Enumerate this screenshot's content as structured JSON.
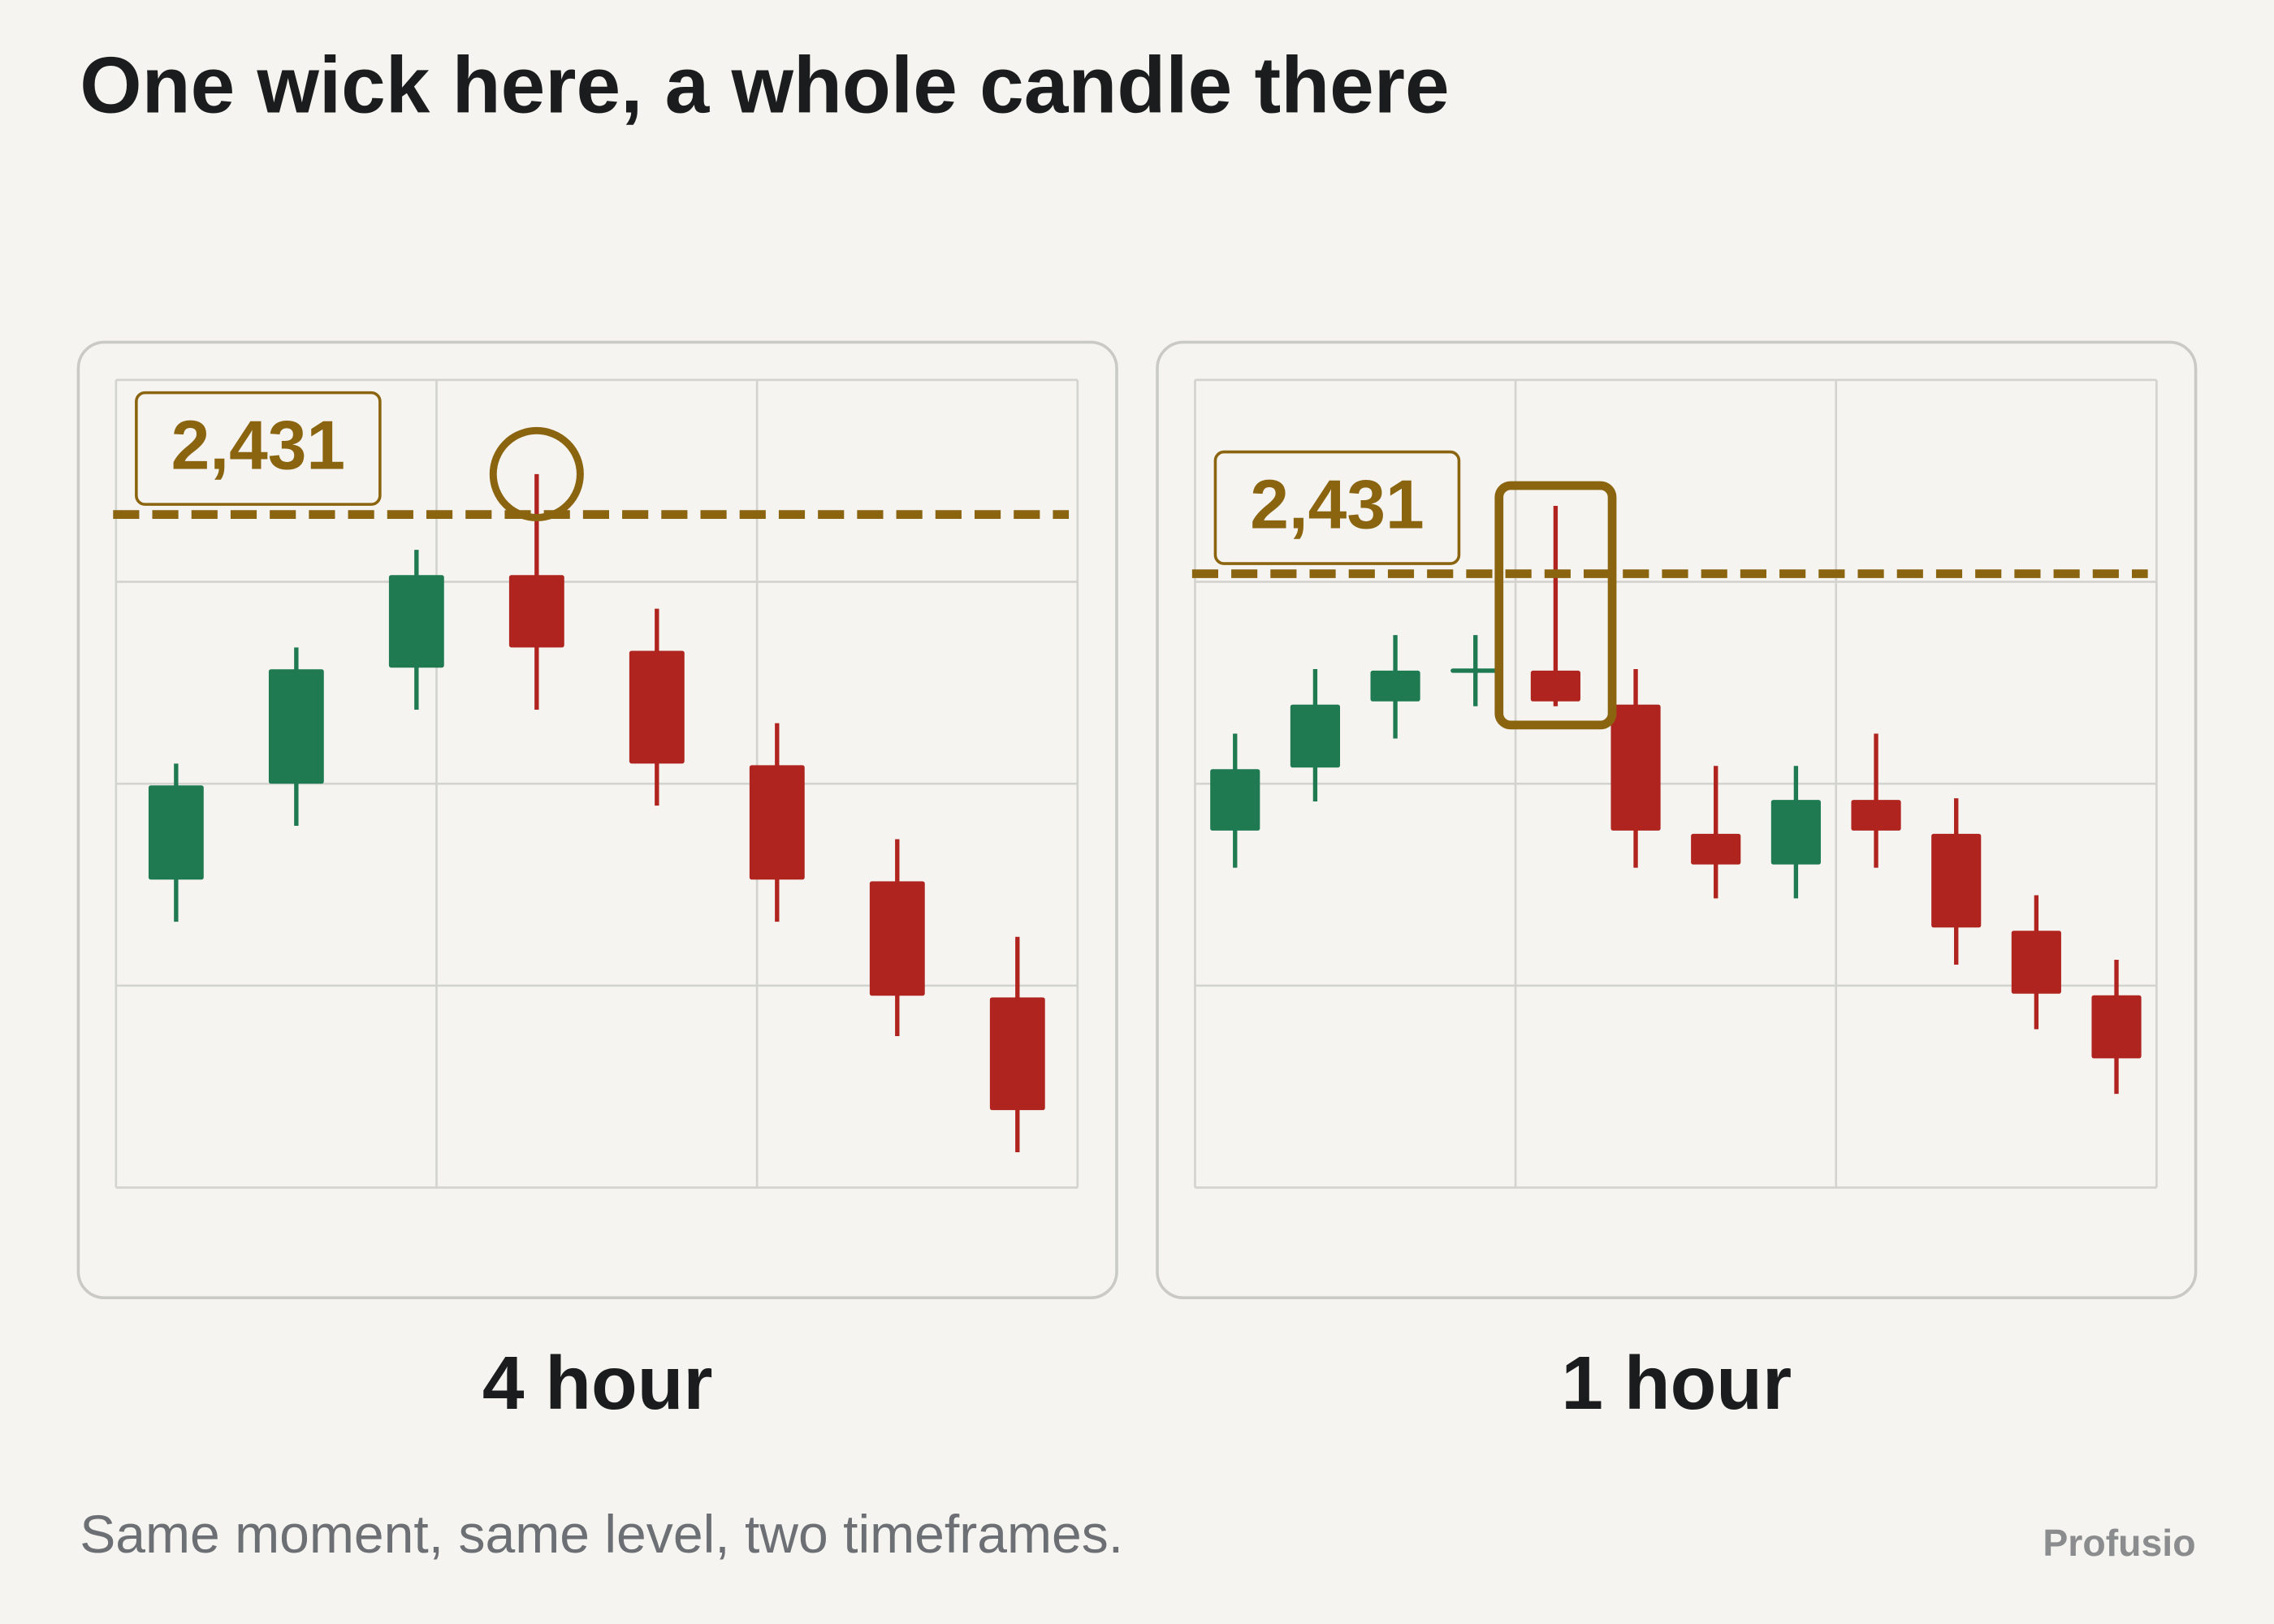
{
  "title": "One wick here, a whole candle there",
  "caption": "Same moment, same level, two timeframes.",
  "brand": "Profusio",
  "chart_data": [
    {
      "type": "candlestick",
      "title": "4 hour",
      "open": [
        2409.3,
        2415.0,
        2421.9,
        2427.4,
        2422.9,
        2416.1,
        2409.2,
        2402.3
      ],
      "high": [
        2416.2,
        2423.1,
        2428.9,
        2433.4,
        2425.4,
        2418.6,
        2411.7,
        2405.9
      ],
      "low": [
        2406.8,
        2412.5,
        2419.4,
        2419.4,
        2413.7,
        2406.8,
        2400.0,
        2393.1
      ],
      "close": [
        2414.9,
        2421.8,
        2427.4,
        2423.1,
        2416.2,
        2409.3,
        2402.4,
        2395.6
      ],
      "up_color": "#1f7a52",
      "down_color": "#b0241f",
      "ylim": [
        2391,
        2439
      ],
      "yticks": [
        2391,
        2403,
        2415,
        2427,
        2439
      ],
      "grid": true,
      "level": {
        "value": 2431,
        "label": "2,431"
      },
      "level_color": "#8b6410",
      "highlight": {
        "index": 3,
        "shape": "circle"
      }
    },
    {
      "type": "candlestick",
      "title": "1 hour",
      "open": [
        2415.1,
        2419.0,
        2423.1,
        2425.0,
        2425.0,
        2422.9,
        2414.9,
        2413.0,
        2417.0,
        2414.9,
        2408.9,
        2404.9
      ],
      "high": [
        2421.1,
        2425.1,
        2427.2,
        2427.2,
        2435.2,
        2425.1,
        2419.1,
        2419.1,
        2421.1,
        2417.1,
        2411.1,
        2407.1
      ],
      "low": [
        2412.8,
        2416.9,
        2420.8,
        2422.8,
        2422.8,
        2412.8,
        2410.9,
        2410.9,
        2412.8,
        2406.8,
        2402.8,
        2398.8
      ],
      "close": [
        2418.9,
        2422.9,
        2425.0,
        2425.0,
        2423.1,
        2415.1,
        2413.0,
        2417.0,
        2415.1,
        2409.1,
        2405.0,
        2401.0
      ],
      "up_color": "#1f7a52",
      "down_color": "#b0241f",
      "ylim": [
        2393,
        2443
      ],
      "yticks": [
        2393,
        2405.5,
        2418,
        2430.5,
        2443
      ],
      "grid": true,
      "level": {
        "value": 2431,
        "label": "2,431"
      },
      "level_color": "#8b6410",
      "highlight": {
        "index": 4,
        "shape": "box"
      }
    }
  ]
}
